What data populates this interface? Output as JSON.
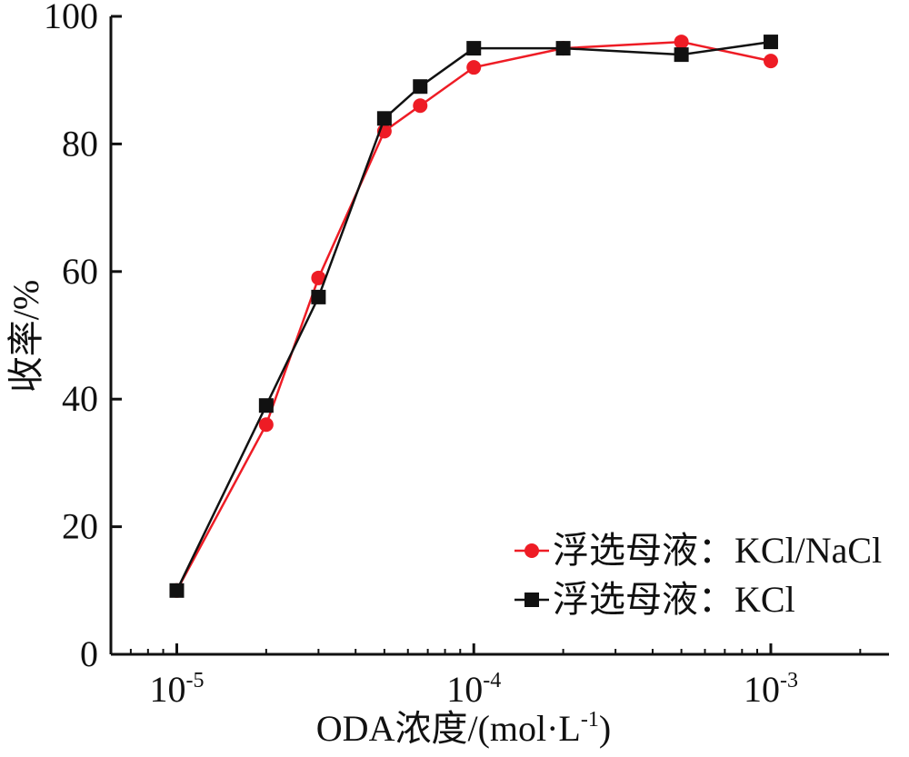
{
  "chart_data": {
    "type": "line",
    "xscale": "log",
    "xlim": [
      6e-06,
      0.0025
    ],
    "ylim": [
      0,
      100
    ],
    "xlabel": "ODA浓度/(mol·L",
    "xlabel_sup": "-1",
    "xlabel_end": ")",
    "ylabel": "收率/%",
    "xticks": [
      {
        "value": 1e-05,
        "base": "10",
        "exp": "-5"
      },
      {
        "value": 0.0001,
        "base": "10",
        "exp": "-4"
      },
      {
        "value": 0.001,
        "base": "10",
        "exp": "-3"
      }
    ],
    "yticks": [
      "0",
      "20",
      "40",
      "60",
      "80",
      "100"
    ],
    "ytick_values": [
      0,
      20,
      40,
      60,
      80,
      100
    ],
    "legend_position": "bottom-right",
    "series": [
      {
        "name": "浮选母液：KCl/NaCl",
        "color": "#ee1c25",
        "marker": "circle",
        "x": [
          1e-05,
          2e-05,
          3e-05,
          5e-05,
          6.6e-05,
          0.0001,
          0.0002,
          0.0005,
          0.001
        ],
        "y": [
          10,
          36,
          59,
          82,
          86,
          92,
          95,
          96,
          93
        ]
      },
      {
        "name": "浮选母液：KCl",
        "color": "#111111",
        "marker": "square",
        "x": [
          1e-05,
          2e-05,
          3e-05,
          5e-05,
          6.6e-05,
          0.0001,
          0.0002,
          0.0005,
          0.001
        ],
        "y": [
          10,
          39,
          56,
          84,
          89,
          95,
          95,
          94,
          96
        ]
      }
    ]
  }
}
